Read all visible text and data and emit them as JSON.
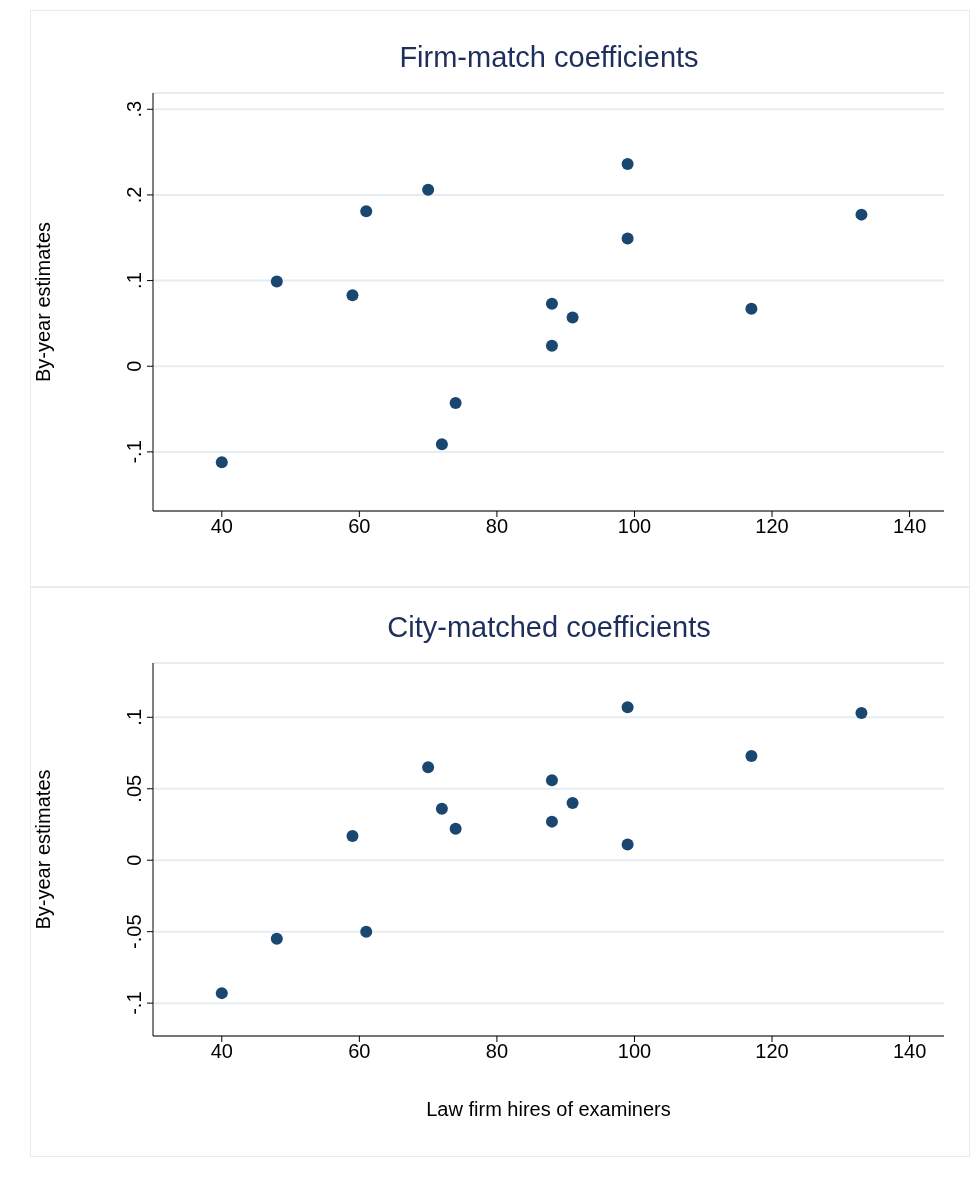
{
  "chart_data": [
    {
      "type": "scatter",
      "title": "Firm-match coefficients",
      "ylabel": "By-year estimates",
      "xlim": [
        30,
        145
      ],
      "xticks": [
        40,
        60,
        80,
        100,
        120,
        140
      ],
      "ylim": [
        -0.169,
        0.319
      ],
      "yticks": [
        {
          "value": -0.1,
          "label": "-.1"
        },
        0,
        {
          "value": 0.1,
          "label": ".1"
        },
        {
          "value": 0.2,
          "label": ".2"
        },
        {
          "value": 0.3,
          "label": ".3"
        }
      ],
      "grid": "y",
      "marker": "circle",
      "series": [
        {
          "color": "#1a476f",
          "x": [
            40,
            48,
            59,
            61,
            70,
            72,
            74,
            88,
            88,
            91,
            99,
            99,
            117,
            133
          ],
          "values": [
            -0.112,
            0.099,
            0.083,
            0.181,
            0.206,
            -0.091,
            -0.043,
            0.073,
            0.024,
            0.057,
            0.236,
            0.149,
            0.067,
            0.177
          ]
        }
      ]
    },
    {
      "type": "scatter",
      "title": "City-matched coefficients",
      "xlabel": "Law firm hires of examiners",
      "ylabel": "By-year estimates",
      "xlim": [
        30,
        145
      ],
      "xticks": [
        40,
        60,
        80,
        100,
        120,
        140
      ],
      "ylim": [
        -0.123,
        0.138
      ],
      "yticks": [
        {
          "value": -0.1,
          "label": "-.1"
        },
        {
          "value": -0.05,
          "label": "-.05"
        },
        0,
        {
          "value": 0.05,
          "label": ".05"
        },
        {
          "value": 0.1,
          "label": ".1"
        }
      ],
      "grid": "y",
      "marker": "circle",
      "series": [
        {
          "color": "#1a476f",
          "x": [
            40,
            48,
            59,
            61,
            70,
            72,
            74,
            88,
            88,
            91,
            99,
            99,
            117,
            133
          ],
          "values": [
            -0.093,
            -0.055,
            0.017,
            -0.05,
            0.065,
            0.036,
            0.022,
            0.056,
            0.027,
            0.04,
            0.107,
            0.011,
            0.073,
            0.103
          ]
        }
      ]
    }
  ]
}
